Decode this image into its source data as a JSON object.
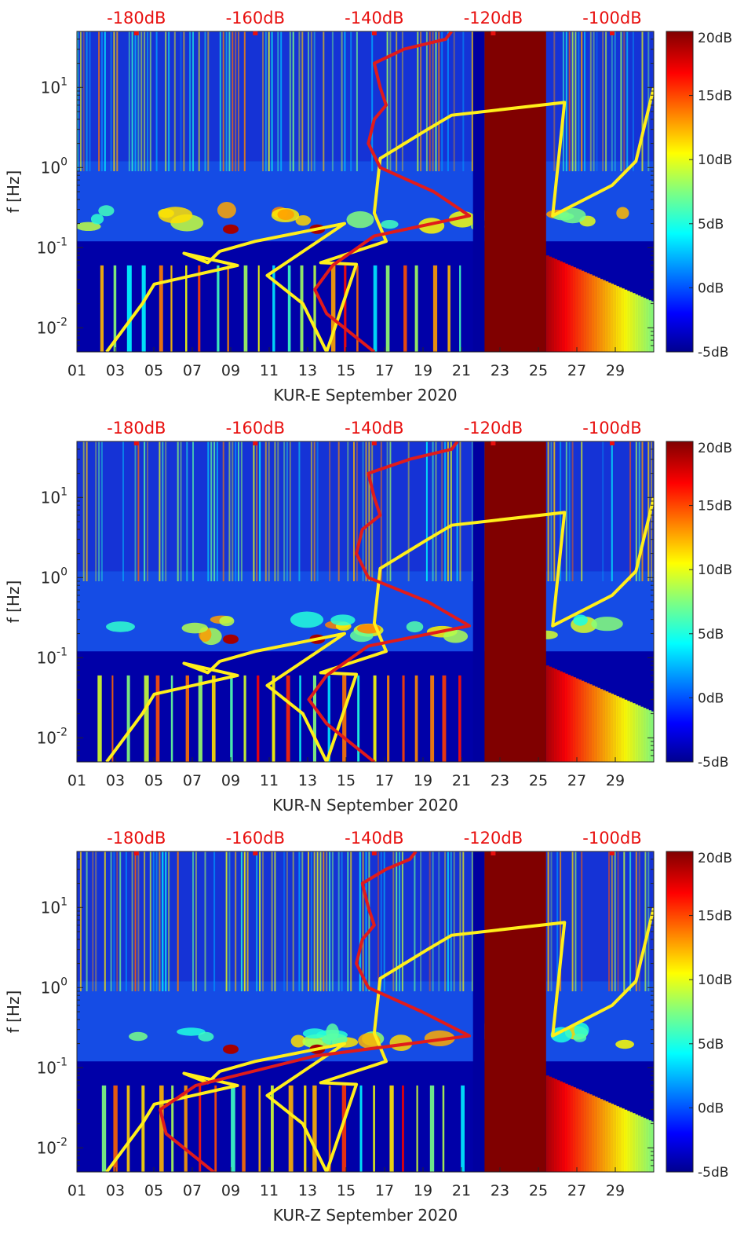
{
  "figure": {
    "colorbar_ticks": [
      "20dB",
      "15dB",
      "10dB",
      "5dB",
      "0dB",
      "-5dB"
    ],
    "colormap": "jet",
    "top_axis_ticks": [
      "-180dB",
      "-160dB",
      "-140dB",
      "-120dB",
      "-100dB"
    ],
    "top_axis_color": "#e8100f",
    "yellow_color": "#ffef1a",
    "red_color": "#e01b1b"
  },
  "chart_data": [
    {
      "type": "heatmap",
      "title": "",
      "xlabel": "KUR-E September 2020",
      "ylabel": "f [Hz]",
      "x_ticks": [
        "01",
        "03",
        "05",
        "07",
        "09",
        "11",
        "13",
        "15",
        "17",
        "19",
        "21",
        "23",
        "25",
        "27",
        "29"
      ],
      "xlim": [
        1,
        31
      ],
      "y_scale": "log",
      "ylim": [
        0.005,
        50
      ],
      "y_ticks": [
        "10^{-2}",
        "10^{-1}",
        "10^{0}",
        "10^{1}"
      ],
      "color_range_dB": [
        -5,
        20
      ],
      "colorbar_ticks": [
        "20dB",
        "15dB",
        "10dB",
        "5dB",
        "0dB",
        "-5dB"
      ],
      "data_gap_days": [
        21.6,
        22.2
      ],
      "saturated_days": [
        22.2,
        25.4
      ],
      "secondary_x_ticks": [
        "-180dB",
        "-160dB",
        "-140dB",
        "-120dB",
        "-100dB"
      ],
      "secondary_xlim_dB": [
        -190,
        -93
      ],
      "series": [
        {
          "color": "yellow",
          "x_dB": [
            -185,
            -182,
            -179,
            -177,
            -163,
            -172,
            -168,
            -166,
            -160,
            -145,
            -158,
            -152,
            -148,
            -143,
            -149,
            -138,
            -140,
            -139,
            -131,
            -127,
            -108,
            -110,
            -100,
            -96,
            -93
          ],
          "f_hz": [
            0.005,
            0.01,
            0.02,
            0.035,
            0.06,
            0.085,
            0.065,
            0.09,
            0.12,
            0.2,
            0.045,
            0.02,
            0.005,
            0.062,
            0.065,
            0.12,
            0.27,
            1.3,
            3,
            4.5,
            6.5,
            0.25,
            0.6,
            1.2,
            10
          ]
        },
        {
          "color": "red",
          "x_dB": [
            -140,
            -148,
            -150,
            -147,
            -140,
            -124,
            -130,
            -139,
            -141,
            -140,
            -138,
            -139,
            -140,
            -135,
            -128,
            -127
          ],
          "f_hz": [
            0.005,
            0.015,
            0.03,
            0.06,
            0.14,
            0.25,
            0.5,
            1,
            2,
            4,
            6,
            10,
            20,
            30,
            40,
            50
          ]
        }
      ]
    },
    {
      "type": "heatmap",
      "title": "",
      "xlabel": "KUR-N September 2020",
      "ylabel": "f [Hz]",
      "x_ticks": [
        "01",
        "03",
        "05",
        "07",
        "09",
        "11",
        "13",
        "15",
        "17",
        "19",
        "21",
        "23",
        "25",
        "27",
        "29"
      ],
      "xlim": [
        1,
        31
      ],
      "y_scale": "log",
      "ylim": [
        0.005,
        50
      ],
      "y_ticks": [
        "10^{-2}",
        "10^{-1}",
        "10^{0}",
        "10^{1}"
      ],
      "color_range_dB": [
        -5,
        20
      ],
      "colorbar_ticks": [
        "20dB",
        "15dB",
        "10dB",
        "5dB",
        "0dB",
        "-5dB"
      ],
      "data_gap_days": [
        21.6,
        22.2
      ],
      "saturated_days": [
        22.2,
        25.4
      ],
      "secondary_x_ticks": [
        "-180dB",
        "-160dB",
        "-140dB",
        "-120dB",
        "-100dB"
      ],
      "secondary_xlim_dB": [
        -190,
        -93
      ],
      "series": [
        {
          "color": "yellow",
          "x_dB": [
            -185,
            -182,
            -179,
            -177,
            -163,
            -172,
            -168,
            -166,
            -160,
            -145,
            -158,
            -152,
            -148,
            -143,
            -149,
            -138,
            -140,
            -139,
            -131,
            -127,
            -108,
            -110,
            -100,
            -96,
            -93
          ],
          "f_hz": [
            0.005,
            0.01,
            0.02,
            0.035,
            0.06,
            0.085,
            0.065,
            0.09,
            0.12,
            0.2,
            0.045,
            0.02,
            0.005,
            0.062,
            0.065,
            0.12,
            0.27,
            1.3,
            3,
            4.5,
            6.5,
            0.25,
            0.6,
            1.2,
            10
          ]
        },
        {
          "color": "red",
          "x_dB": [
            -140,
            -148,
            -151,
            -148,
            -141,
            -124,
            -131,
            -141,
            -143,
            -142,
            -139,
            -140,
            -141,
            -134,
            -127,
            -126
          ],
          "f_hz": [
            0.005,
            0.015,
            0.03,
            0.06,
            0.14,
            0.25,
            0.5,
            1,
            2,
            4,
            6,
            10,
            20,
            30,
            40,
            50
          ]
        }
      ]
    },
    {
      "type": "heatmap",
      "title": "",
      "xlabel": "KUR-Z September 2020",
      "ylabel": "f [Hz]",
      "x_ticks": [
        "01",
        "03",
        "05",
        "07",
        "09",
        "11",
        "13",
        "15",
        "17",
        "19",
        "21",
        "23",
        "25",
        "27",
        "29"
      ],
      "xlim": [
        1,
        31
      ],
      "y_scale": "log",
      "ylim": [
        0.005,
        50
      ],
      "y_ticks": [
        "10^{-2}",
        "10^{-1}",
        "10^{0}",
        "10^{1}"
      ],
      "color_range_dB": [
        -5,
        20
      ],
      "colorbar_ticks": [
        "20dB",
        "15dB",
        "10dB",
        "5dB",
        "0dB",
        "-5dB"
      ],
      "data_gap_days": [
        21.6,
        22.2
      ],
      "saturated_days": [
        22.2,
        25.4
      ],
      "secondary_x_ticks": [
        "-180dB",
        "-160dB",
        "-140dB",
        "-120dB",
        "-100dB"
      ],
      "secondary_xlim_dB": [
        -190,
        -93
      ],
      "series": [
        {
          "color": "yellow",
          "x_dB": [
            -185,
            -182,
            -179,
            -177,
            -163,
            -172,
            -168,
            -166,
            -160,
            -145,
            -158,
            -152,
            -148,
            -143,
            -149,
            -138,
            -140,
            -139,
            -131,
            -127,
            -108,
            -110,
            -100,
            -96,
            -93
          ],
          "f_hz": [
            0.005,
            0.01,
            0.02,
            0.035,
            0.06,
            0.085,
            0.065,
            0.09,
            0.12,
            0.2,
            0.045,
            0.02,
            0.005,
            0.062,
            0.065,
            0.12,
            0.27,
            1.3,
            3,
            4.5,
            6.5,
            0.25,
            0.6,
            1.2,
            10
          ]
        },
        {
          "color": "red",
          "x_dB": [
            -167,
            -175,
            -176,
            -170,
            -150,
            -124,
            -132,
            -141,
            -143,
            -142,
            -140,
            -141,
            -142,
            -138,
            -134,
            -133
          ],
          "f_hz": [
            0.005,
            0.015,
            0.03,
            0.06,
            0.14,
            0.25,
            0.5,
            1,
            2,
            4,
            6,
            10,
            20,
            30,
            40,
            50
          ]
        }
      ]
    }
  ]
}
